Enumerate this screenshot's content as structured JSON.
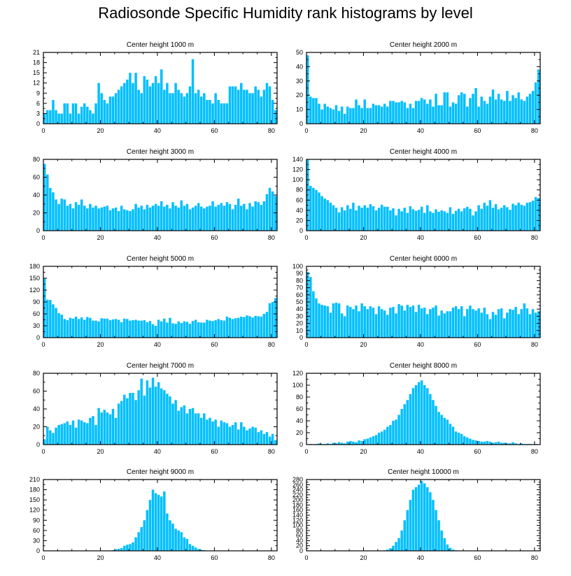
{
  "page": {
    "title": "Radiosonde Specific Humidity rank histograms by level"
  },
  "style": {
    "bar_color": "#00BFFF",
    "axis_color": "#000000",
    "background": "#FFFFFF"
  },
  "chart_data": [
    {
      "type": "bar",
      "title": "Center height 1000 m",
      "x_ticks": [
        0,
        20,
        40,
        60,
        80
      ],
      "xlim": [
        0,
        82
      ],
      "y_ticks": [
        0,
        3,
        6,
        9,
        12,
        15,
        18,
        21
      ],
      "ylim": [
        0,
        21
      ],
      "values": [
        3,
        4,
        4,
        7,
        4,
        3,
        3,
        6,
        6,
        3,
        6,
        6,
        3,
        5,
        6,
        5,
        4,
        3,
        6,
        12,
        9,
        7,
        6,
        8,
        8,
        9,
        10,
        11,
        12,
        13,
        15,
        12,
        15,
        10,
        9,
        14,
        13,
        11,
        12,
        14,
        12,
        16,
        10,
        12,
        9,
        9,
        12,
        10,
        9,
        8,
        9,
        11,
        19,
        9,
        10,
        8,
        9,
        7,
        7,
        6,
        9,
        7,
        6,
        6,
        6,
        11,
        11,
        11,
        10,
        12,
        10,
        10,
        9,
        9,
        11,
        10,
        8,
        10,
        12,
        11,
        7,
        4
      ]
    },
    {
      "type": "bar",
      "title": "Center height 2000 m",
      "x_ticks": [
        0,
        20,
        40,
        60,
        80
      ],
      "xlim": [
        0,
        82
      ],
      "y_ticks": [
        0,
        10,
        20,
        30,
        40,
        50
      ],
      "ylim": [
        0,
        50
      ],
      "values": [
        48,
        19,
        18,
        18,
        14,
        10,
        14,
        12,
        11,
        10,
        13,
        9,
        12,
        7,
        12,
        11,
        11,
        17,
        13,
        11,
        17,
        11,
        11,
        14,
        13,
        13,
        12,
        14,
        12,
        16,
        16,
        15,
        15,
        16,
        15,
        11,
        14,
        11,
        16,
        16,
        18,
        17,
        14,
        17,
        12,
        21,
        13,
        13,
        22,
        22,
        12,
        15,
        14,
        20,
        22,
        21,
        12,
        18,
        21,
        25,
        12,
        19,
        16,
        14,
        19,
        24,
        17,
        21,
        17,
        16,
        23,
        16,
        20,
        18,
        22,
        17,
        16,
        19,
        21,
        23,
        29,
        38
      ]
    },
    {
      "type": "bar",
      "title": "Center height 3000 m",
      "x_ticks": [
        0,
        20,
        40,
        60,
        80
      ],
      "xlim": [
        0,
        82
      ],
      "y_ticks": [
        0,
        20,
        40,
        60,
        80
      ],
      "ylim": [
        0,
        80
      ],
      "values": [
        75,
        63,
        48,
        43,
        35,
        30,
        36,
        35,
        28,
        30,
        25,
        32,
        29,
        35,
        28,
        25,
        30,
        26,
        28,
        25,
        26,
        27,
        28,
        23,
        25,
        26,
        22,
        28,
        24,
        23,
        22,
        24,
        30,
        26,
        28,
        24,
        29,
        26,
        28,
        30,
        28,
        33,
        27,
        29,
        25,
        32,
        28,
        26,
        34,
        28,
        30,
        24,
        26,
        28,
        31,
        27,
        25,
        27,
        28,
        33,
        27,
        29,
        31,
        28,
        32,
        30,
        24,
        29,
        36,
        28,
        30,
        24,
        31,
        27,
        33,
        32,
        29,
        33,
        41,
        48,
        44,
        39
      ]
    },
    {
      "type": "bar",
      "title": "Center height 4000 m",
      "x_ticks": [
        0,
        20,
        40,
        60,
        80
      ],
      "xlim": [
        0,
        82
      ],
      "y_ticks": [
        0,
        20,
        40,
        60,
        80,
        100,
        120,
        140
      ],
      "ylim": [
        0,
        140
      ],
      "values": [
        140,
        88,
        84,
        80,
        75,
        68,
        63,
        60,
        55,
        50,
        45,
        36,
        46,
        40,
        50,
        43,
        55,
        40,
        49,
        45,
        50,
        45,
        52,
        48,
        40,
        45,
        51,
        47,
        47,
        40,
        44,
        30,
        43,
        38,
        45,
        35,
        48,
        42,
        39,
        41,
        47,
        35,
        50,
        38,
        35,
        42,
        37,
        40,
        38,
        35,
        46,
        33,
        39,
        43,
        38,
        44,
        47,
        43,
        30,
        38,
        50,
        43,
        55,
        49,
        60,
        45,
        52,
        42,
        45,
        50,
        46,
        41,
        53,
        50,
        55,
        51,
        49,
        55,
        56,
        59,
        66,
        64
      ]
    },
    {
      "type": "bar",
      "title": "Center height 5000 m",
      "x_ticks": [
        0,
        20,
        40,
        60,
        80
      ],
      "xlim": [
        0,
        82
      ],
      "y_ticks": [
        0,
        30,
        60,
        90,
        120,
        150,
        180
      ],
      "ylim": [
        0,
        180
      ],
      "values": [
        150,
        96,
        95,
        84,
        75,
        62,
        58,
        47,
        44,
        50,
        48,
        53,
        47,
        51,
        45,
        52,
        50,
        43,
        43,
        41,
        49,
        48,
        48,
        44,
        46,
        47,
        45,
        39,
        48,
        47,
        43,
        44,
        45,
        43,
        43,
        44,
        39,
        42,
        34,
        30,
        45,
        41,
        48,
        38,
        50,
        36,
        35,
        41,
        37,
        41,
        40,
        35,
        42,
        45,
        39,
        38,
        38,
        45,
        43,
        42,
        44,
        47,
        44,
        43,
        53,
        50,
        47,
        49,
        50,
        53,
        52,
        56,
        54,
        51,
        55,
        54,
        53,
        60,
        65,
        87,
        90,
        100
      ]
    },
    {
      "type": "bar",
      "title": "Center height 6000 m",
      "x_ticks": [
        0,
        20,
        40,
        60,
        80
      ],
      "xlim": [
        0,
        82
      ],
      "y_ticks": [
        0,
        10,
        20,
        30,
        40,
        50,
        60,
        70,
        80,
        90,
        100
      ],
      "ylim": [
        0,
        100
      ],
      "values": [
        92,
        85,
        65,
        55,
        48,
        46,
        45,
        44,
        35,
        48,
        49,
        48,
        34,
        30,
        45,
        43,
        40,
        45,
        37,
        48,
        44,
        40,
        44,
        42,
        33,
        44,
        40,
        38,
        32,
        42,
        43,
        34,
        47,
        45,
        38,
        46,
        43,
        45,
        36,
        46,
        41,
        42,
        33,
        40,
        42,
        45,
        31,
        38,
        34,
        37,
        37,
        42,
        44,
        40,
        44,
        30,
        40,
        45,
        40,
        38,
        41,
        35,
        42,
        33,
        26,
        36,
        32,
        40,
        41,
        27,
        35,
        40,
        39,
        43,
        33,
        40,
        48,
        41,
        33,
        40,
        35,
        37
      ]
    },
    {
      "type": "bar",
      "title": "Center height 7000 m",
      "x_ticks": [
        0,
        20,
        40,
        60,
        80
      ],
      "xlim": [
        0,
        82
      ],
      "y_ticks": [
        0,
        20,
        40,
        60,
        80
      ],
      "ylim": [
        0,
        80
      ],
      "values": [
        6,
        20,
        16,
        13,
        19,
        22,
        23,
        24,
        26,
        22,
        27,
        19,
        28,
        27,
        25,
        24,
        30,
        32,
        22,
        41,
        36,
        39,
        36,
        34,
        40,
        30,
        46,
        49,
        56,
        52,
        58,
        58,
        50,
        61,
        74,
        55,
        72,
        64,
        75,
        65,
        70,
        63,
        61,
        57,
        54,
        46,
        50,
        38,
        42,
        44,
        35,
        40,
        41,
        35,
        35,
        30,
        35,
        28,
        30,
        26,
        28,
        20,
        27,
        25,
        24,
        20,
        22,
        25,
        17,
        25,
        20,
        16,
        18,
        20,
        19,
        14,
        16,
        12,
        14,
        9,
        12,
        5
      ]
    },
    {
      "type": "bar",
      "title": "Center height 8000 m",
      "x_ticks": [
        0,
        20,
        40,
        60,
        80
      ],
      "xlim": [
        0,
        82
      ],
      "y_ticks": [
        0,
        20,
        40,
        60,
        80,
        100,
        120
      ],
      "ylim": [
        0,
        120
      ],
      "values": [
        0,
        1,
        0,
        1,
        2,
        1,
        1,
        2,
        1,
        3,
        2,
        4,
        3,
        2,
        5,
        6,
        5,
        4,
        7,
        6,
        9,
        10,
        12,
        14,
        16,
        20,
        22,
        25,
        30,
        33,
        40,
        42,
        50,
        60,
        68,
        75,
        85,
        95,
        100,
        105,
        108,
        100,
        95,
        85,
        75,
        65,
        55,
        50,
        45,
        42,
        35,
        30,
        22,
        20,
        18,
        14,
        12,
        10,
        8,
        7,
        6,
        5,
        5,
        6,
        5,
        3,
        4,
        5,
        3,
        3,
        2,
        2,
        4,
        2,
        1,
        2,
        1,
        1,
        1,
        0,
        1,
        0
      ]
    },
    {
      "type": "bar",
      "title": "Center height 9000 m",
      "x_ticks": [
        0,
        20,
        40,
        60,
        80
      ],
      "xlim": [
        0,
        82
      ],
      "y_ticks": [
        0,
        30,
        60,
        90,
        120,
        150,
        180,
        210
      ],
      "ylim": [
        0,
        210
      ],
      "values": [
        0,
        0,
        0,
        0,
        0,
        0,
        0,
        0,
        0,
        0,
        0,
        0,
        0,
        0,
        0,
        0,
        0,
        0,
        0,
        0,
        0,
        1,
        1,
        1,
        2,
        5,
        6,
        8,
        15,
        18,
        20,
        25,
        40,
        55,
        70,
        90,
        120,
        150,
        180,
        170,
        165,
        160,
        175,
        110,
        90,
        80,
        65,
        60,
        55,
        40,
        35,
        20,
        15,
        10,
        5,
        3,
        2,
        1,
        1,
        0,
        0,
        0,
        0,
        0,
        0,
        0,
        0,
        0,
        0,
        0,
        0,
        0,
        0,
        0,
        0,
        0,
        0,
        0,
        0,
        0,
        0,
        0
      ]
    },
    {
      "type": "bar",
      "title": "Center height 10000 m",
      "x_ticks": [
        0,
        20,
        40,
        60,
        80
      ],
      "xlim": [
        0,
        82
      ],
      "y_ticks": [
        0,
        20,
        40,
        60,
        80,
        100,
        120,
        140,
        160,
        180,
        200,
        220,
        240,
        260,
        280
      ],
      "ylim": [
        0,
        280
      ],
      "values": [
        0,
        0,
        0,
        0,
        0,
        0,
        0,
        0,
        0,
        0,
        0,
        0,
        0,
        0,
        0,
        0,
        0,
        0,
        0,
        0,
        0,
        0,
        0,
        0,
        0,
        1,
        1,
        2,
        5,
        10,
        20,
        35,
        50,
        80,
        120,
        160,
        200,
        240,
        250,
        260,
        275,
        265,
        250,
        230,
        200,
        160,
        120,
        80,
        50,
        25,
        12,
        5,
        2,
        1,
        0,
        0,
        0,
        0,
        0,
        0,
        0,
        0,
        0,
        0,
        0,
        0,
        0,
        0,
        0,
        0,
        0,
        0,
        0,
        0,
        0,
        0,
        0,
        0,
        0,
        0,
        0,
        0
      ]
    }
  ]
}
